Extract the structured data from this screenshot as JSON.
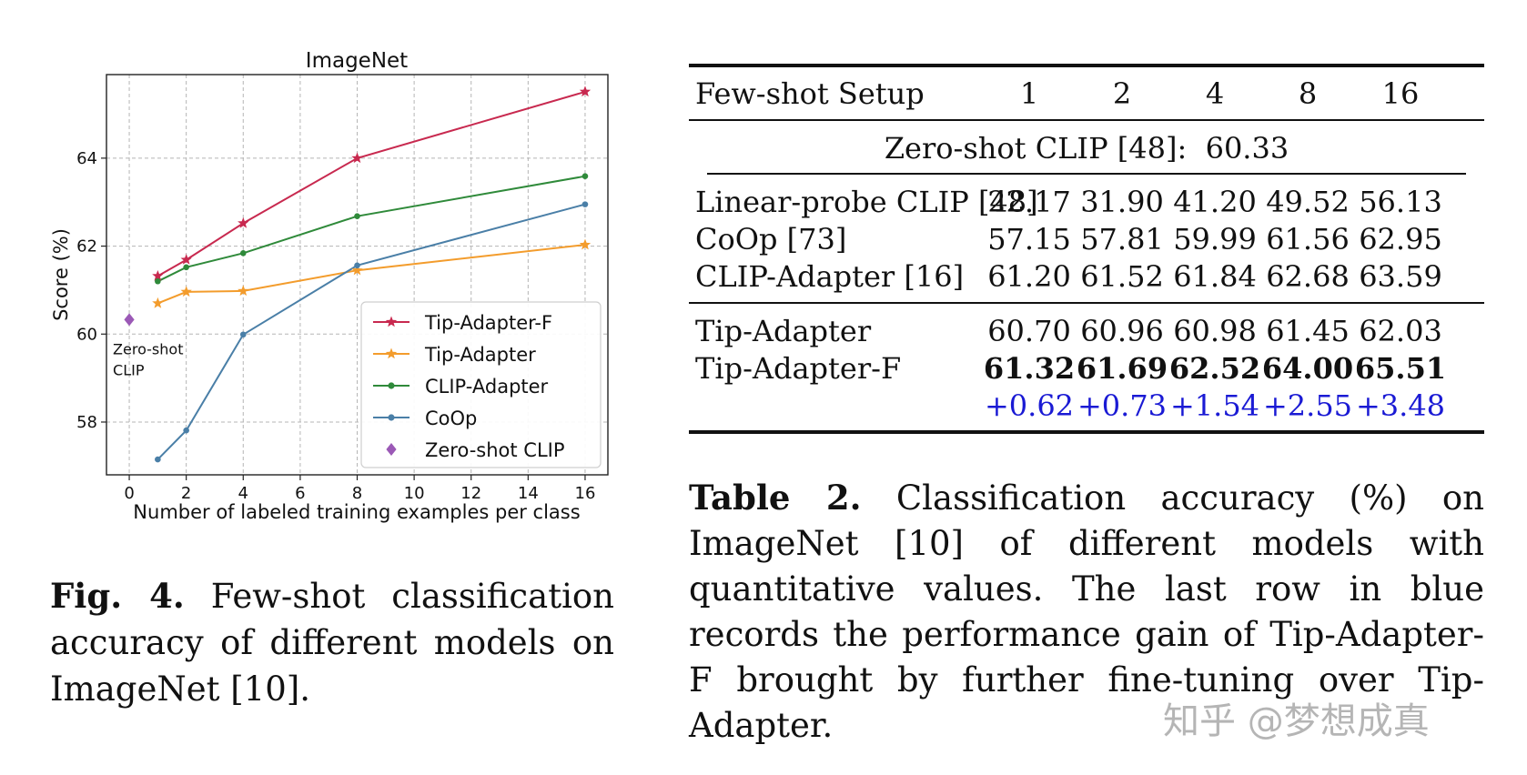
{
  "chart_data": {
    "type": "line",
    "title": "ImageNet",
    "xlabel": "Number of labeled training examples per class",
    "ylabel": "Score (%)",
    "xlim": [
      -0.8,
      16.8
    ],
    "ylim": [
      56.8,
      65.9
    ],
    "xticks": [
      0,
      2,
      4,
      6,
      8,
      10,
      12,
      14,
      16
    ],
    "yticks": [
      58,
      60,
      62,
      64
    ],
    "grid": true,
    "legend_position": "bottom-right",
    "series": [
      {
        "name": "Tip-Adapter-F",
        "color": "#c8294f",
        "marker": "star",
        "x": [
          1,
          2,
          4,
          8,
          16
        ],
        "y": [
          61.32,
          61.69,
          62.52,
          64.0,
          65.51
        ]
      },
      {
        "name": "Tip-Adapter",
        "color": "#f39c2c",
        "marker": "star",
        "x": [
          1,
          2,
          4,
          8,
          16
        ],
        "y": [
          60.7,
          60.96,
          60.98,
          61.45,
          62.03
        ]
      },
      {
        "name": "CLIP-Adapter",
        "color": "#2f8a3a",
        "marker": "dot",
        "x": [
          1,
          2,
          4,
          8,
          16
        ],
        "y": [
          61.2,
          61.52,
          61.84,
          62.68,
          63.59
        ]
      },
      {
        "name": "CoOp",
        "color": "#4a7fa7",
        "marker": "dot",
        "x": [
          1,
          2,
          4,
          8,
          16
        ],
        "y": [
          57.15,
          57.81,
          59.99,
          61.56,
          62.95
        ]
      },
      {
        "name": "Zero-shot CLIP",
        "color": "#9b59b6",
        "marker": "diamond",
        "x": [
          0
        ],
        "y": [
          60.33
        ]
      }
    ],
    "annotation": {
      "line1": "Zero-shot",
      "line2": "CLIP",
      "x": 0,
      "y": 60.33
    }
  },
  "figure_caption": {
    "label": "Fig. 4.",
    "text": "Few-shot classification accuracy of different models on ImageNet [10]."
  },
  "table": {
    "header": {
      "label": "Few-shot Setup",
      "shots": [
        "1",
        "2",
        "4",
        "8",
        "16"
      ]
    },
    "zero_shot_row": "Zero-shot CLIP [48]:  60.33",
    "baseline_rows": [
      {
        "name": "Linear-probe CLIP [48]",
        "values": [
          "22.17",
          "31.90",
          "41.20",
          "49.52",
          "56.13"
        ]
      },
      {
        "name": "CoOp [73]",
        "values": [
          "57.15",
          "57.81",
          "59.99",
          "61.56",
          "62.95"
        ]
      },
      {
        "name": "CLIP-Adapter [16]",
        "values": [
          "61.20",
          "61.52",
          "61.84",
          "62.68",
          "63.59"
        ]
      }
    ],
    "ours_rows": [
      {
        "name": "Tip-Adapter",
        "values": [
          "60.70",
          "60.96",
          "60.98",
          "61.45",
          "62.03"
        ]
      },
      {
        "name": "Tip-Adapter-F",
        "values": [
          "61.32",
          "61.69",
          "62.52",
          "64.00",
          "65.51"
        ]
      }
    ],
    "gain_row": [
      "+0.62",
      "+0.73",
      "+1.54",
      "+2.55",
      "+3.48"
    ],
    "gain_color": "#1a1ad4"
  },
  "table_caption": {
    "label": "Table 2.",
    "text": "Classification accuracy (%) on ImageNet [10] of different models with quantitative values. The last row in blue records the performance gain of Tip-Adapter-F brought by further fine-tuning over Tip-Adapter."
  },
  "watermark": "知乎 @梦想成真"
}
